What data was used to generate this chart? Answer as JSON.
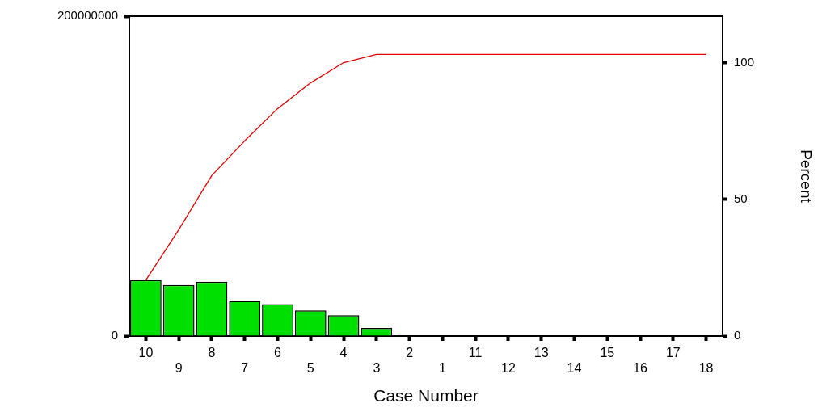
{
  "chart_data": {
    "type": "bar",
    "xlabel": "Case Number",
    "y2label": "Percent",
    "categories": [
      "10",
      "9",
      "8",
      "7",
      "6",
      "5",
      "4",
      "3",
      "2",
      "1",
      "11",
      "12",
      "13",
      "14",
      "15",
      "16",
      "17",
      "18"
    ],
    "series": [
      {
        "color": "#00e000",
        "values": [
          35000000,
          32000000,
          34000000,
          22000000,
          20000000,
          16000000,
          13000000,
          5000000,
          0,
          0,
          0,
          0,
          0,
          0,
          0,
          0,
          0,
          0
        ]
      },
      {
        "type": "line",
        "axis": "y2",
        "color": "#e00000",
        "values": [
          20.4,
          38.9,
          58.7,
          71.4,
          83.2,
          92.6,
          100,
          103,
          103,
          103,
          103,
          103,
          103,
          103,
          103,
          103,
          103,
          103
        ]
      }
    ],
    "ylim": [
      0,
      200000000
    ],
    "yticks": [
      0,
      200000000
    ],
    "y2lim": [
      0,
      117
    ],
    "y2ticks": [
      0,
      50,
      100
    ],
    "grid": false,
    "legend": false,
    "marker": "none",
    "line_style": "solid"
  }
}
